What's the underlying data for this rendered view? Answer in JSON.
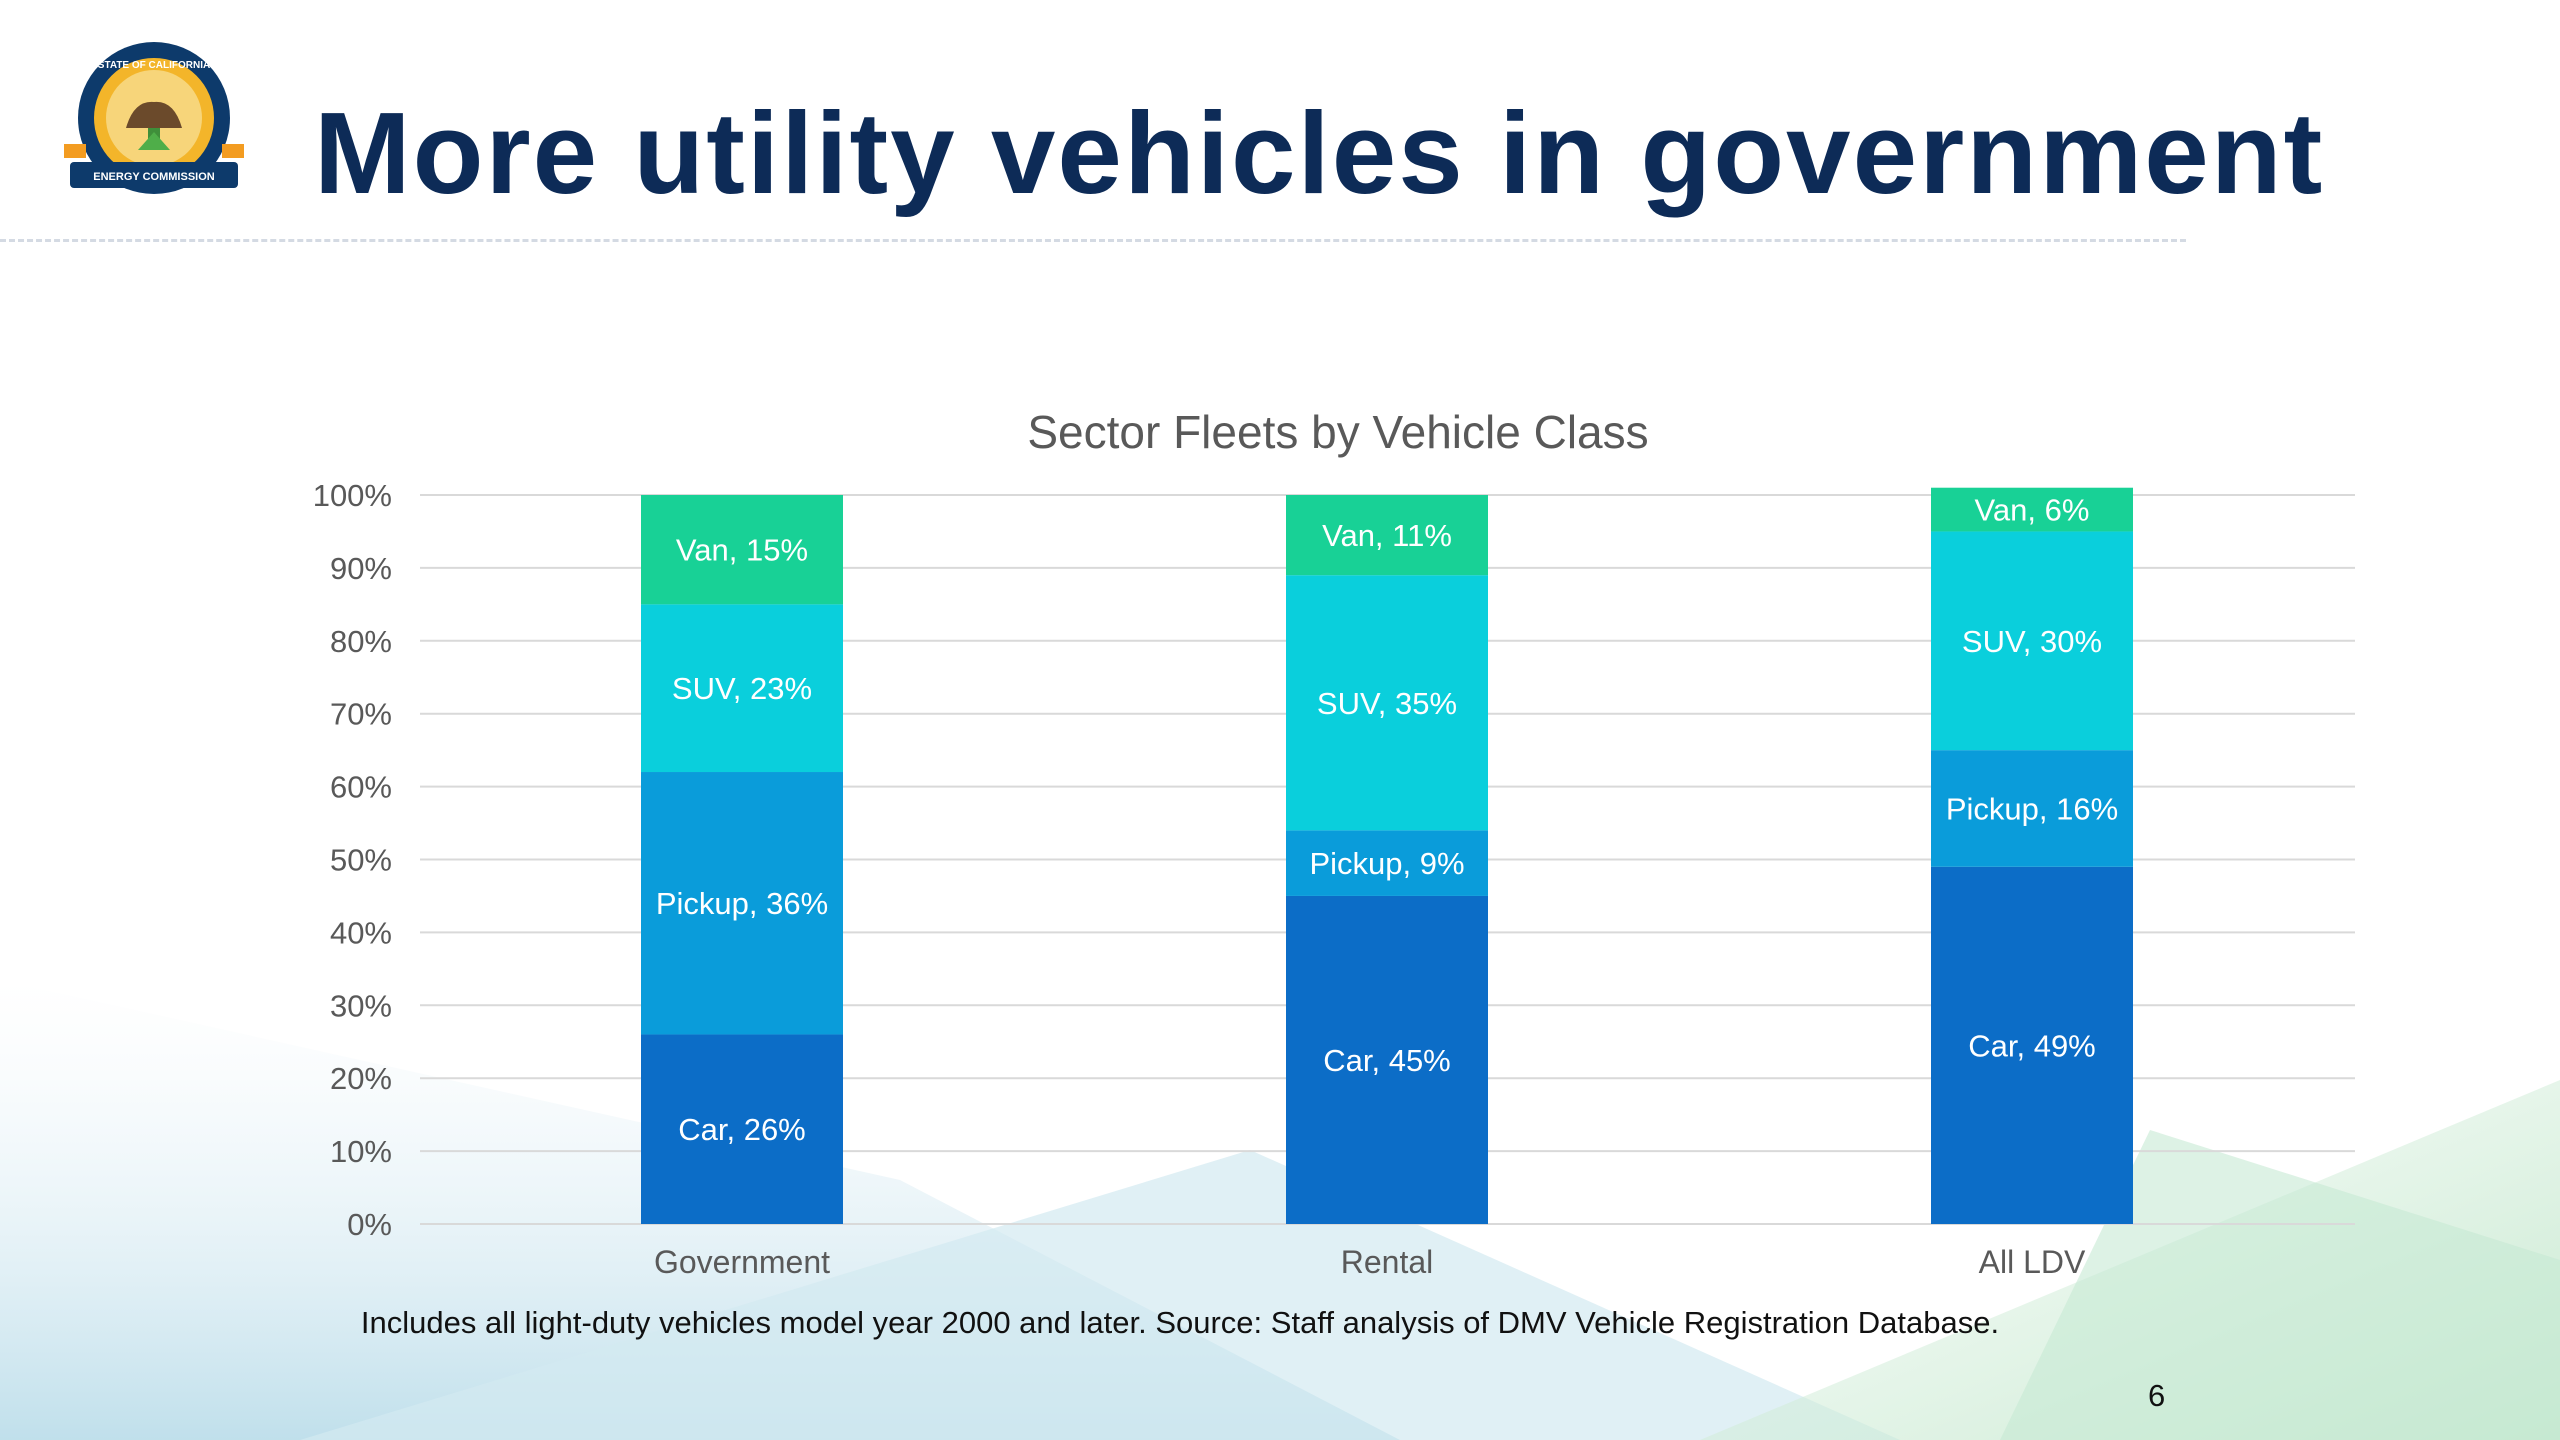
{
  "slide": {
    "title": "More utility vehicles in government",
    "footnote": "Includes all light-duty vehicles model year 2000 and later. Source: Staff analysis of DMV Vehicle Registration Database.",
    "page_number": "6",
    "logo_text_top": "STATE OF CALIFORNIA",
    "logo_text_bottom": "ENERGY COMMISSION"
  },
  "colors": {
    "title": "#0d2b57",
    "car": "#0c6dc7",
    "pickup": "#0a9cda",
    "suv": "#0acfdc",
    "van": "#18d196"
  },
  "chart_data": {
    "type": "bar",
    "stacked": true,
    "title": "Sector Fleets by Vehicle Class",
    "categories": [
      "Government",
      "Rental",
      "All LDV"
    ],
    "series": [
      {
        "name": "Car",
        "values": [
          26,
          45,
          49
        ],
        "color": "#0c6dc7"
      },
      {
        "name": "Pickup",
        "values": [
          36,
          9,
          16
        ],
        "color": "#0a9cda"
      },
      {
        "name": "SUV",
        "values": [
          23,
          35,
          30
        ],
        "color": "#0acfdc"
      },
      {
        "name": "Van",
        "values": [
          15,
          11,
          6
        ],
        "color": "#18d196"
      }
    ],
    "data_labels": [
      [
        "Car, 26%",
        "Car, 45%",
        "Car, 49%"
      ],
      [
        "Pickup, 36%",
        "Pickup, 9%",
        "Pickup, 16%"
      ],
      [
        "SUV, 23%",
        "SUV, 35%",
        "SUV, 30%"
      ],
      [
        "Van, 15%",
        "Van, 11%",
        "Van, 6%"
      ]
    ],
    "ylim": [
      0,
      100
    ],
    "yticks": [
      "0%",
      "10%",
      "20%",
      "30%",
      "40%",
      "50%",
      "60%",
      "70%",
      "80%",
      "90%",
      "100%"
    ],
    "grid": true,
    "legend": "none"
  }
}
